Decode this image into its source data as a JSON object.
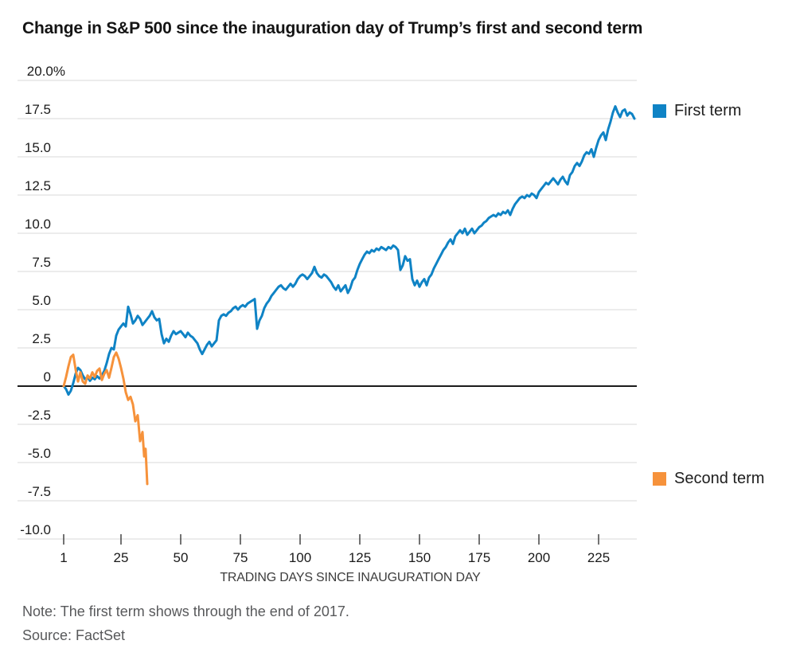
{
  "chart_data": {
    "type": "line",
    "title": "Change in S&P 500 since the inauguration day of Trump’s first and second term",
    "xlabel": "TRADING DAYS SINCE INAUGURATION DAY",
    "ylabel": "",
    "note": "Note: The first term shows through the end of 2017.",
    "source": "Source: FactSet",
    "xlim": [
      1,
      241
    ],
    "ylim": [
      -10,
      20
    ],
    "grid": "horizontal",
    "grid_color": "#d9d9d9",
    "zero_line_color": "#1c1c1c",
    "tick_mark_color": "#444444",
    "legend_position": "right",
    "yticks": [
      {
        "label": "20.0%",
        "value": 20
      },
      {
        "label": "17.5",
        "value": 17.5
      },
      {
        "label": "15.0",
        "value": 15
      },
      {
        "label": "12.5",
        "value": 12.5
      },
      {
        "label": "10.0",
        "value": 10
      },
      {
        "label": "7.5",
        "value": 7.5
      },
      {
        "label": "5.0",
        "value": 5
      },
      {
        "label": "2.5",
        "value": 2.5
      },
      {
        "label": "0",
        "value": 0
      },
      {
        "label": "-2.5",
        "value": -2.5
      },
      {
        "label": "-5.0",
        "value": -5
      },
      {
        "label": "-7.5",
        "value": -7.5
      },
      {
        "label": "-10.0",
        "value": -10
      }
    ],
    "xticks": [
      {
        "label": "1",
        "value": 1
      },
      {
        "label": "25",
        "value": 25
      },
      {
        "label": "50",
        "value": 50
      },
      {
        "label": "75",
        "value": 75
      },
      {
        "label": "100",
        "value": 100
      },
      {
        "label": "125",
        "value": 125
      },
      {
        "label": "150",
        "value": 150
      },
      {
        "label": "175",
        "value": 175
      },
      {
        "label": "200",
        "value": 200
      },
      {
        "label": "225",
        "value": 225
      }
    ],
    "series": [
      {
        "name": "First term",
        "color": "#0f83c5",
        "start_day": 1,
        "step": 1,
        "values": [
          0.0,
          -0.2,
          -0.55,
          -0.3,
          0.2,
          0.8,
          1.2,
          1.05,
          0.7,
          0.45,
          0.6,
          0.35,
          0.55,
          0.45,
          0.65,
          0.5,
          0.7,
          1.0,
          1.5,
          2.1,
          2.5,
          2.4,
          3.3,
          3.7,
          3.9,
          4.1,
          3.9,
          5.2,
          4.7,
          4.1,
          4.3,
          4.6,
          4.4,
          4.0,
          4.2,
          4.4,
          4.6,
          4.9,
          4.5,
          4.3,
          4.4,
          3.4,
          2.8,
          3.1,
          2.9,
          3.3,
          3.6,
          3.4,
          3.5,
          3.6,
          3.4,
          3.2,
          3.5,
          3.3,
          3.2,
          3.0,
          2.8,
          2.4,
          2.1,
          2.4,
          2.7,
          2.9,
          2.6,
          2.8,
          3.0,
          4.3,
          4.6,
          4.7,
          4.6,
          4.8,
          4.9,
          5.1,
          5.2,
          5.0,
          5.2,
          5.3,
          5.2,
          5.4,
          5.5,
          5.6,
          5.7,
          3.75,
          4.3,
          4.6,
          5.1,
          5.4,
          5.6,
          5.9,
          6.1,
          6.3,
          6.5,
          6.6,
          6.4,
          6.3,
          6.5,
          6.7,
          6.5,
          6.7,
          7.0,
          7.2,
          7.3,
          7.2,
          7.0,
          7.2,
          7.4,
          7.8,
          7.4,
          7.2,
          7.1,
          7.3,
          7.2,
          7.0,
          6.8,
          6.5,
          6.3,
          6.6,
          6.2,
          6.4,
          6.6,
          6.1,
          6.4,
          6.9,
          7.1,
          7.6,
          8.0,
          8.3,
          8.6,
          8.8,
          8.7,
          8.9,
          8.8,
          9.0,
          8.9,
          9.1,
          9.0,
          8.9,
          9.1,
          9.0,
          9.2,
          9.1,
          8.9,
          7.6,
          7.9,
          8.5,
          8.2,
          8.3,
          7.0,
          6.6,
          6.9,
          6.5,
          6.8,
          7.0,
          6.6,
          7.1,
          7.3,
          7.7,
          8.0,
          8.3,
          8.6,
          8.9,
          9.1,
          9.4,
          9.6,
          9.3,
          9.8,
          10.0,
          10.2,
          10.0,
          10.3,
          9.9,
          10.1,
          10.3,
          10.0,
          10.2,
          10.4,
          10.5,
          10.7,
          10.8,
          11.0,
          11.1,
          11.2,
          11.1,
          11.3,
          11.2,
          11.4,
          11.3,
          11.5,
          11.2,
          11.6,
          11.9,
          12.1,
          12.3,
          12.4,
          12.3,
          12.5,
          12.4,
          12.6,
          12.5,
          12.3,
          12.7,
          12.9,
          13.1,
          13.3,
          13.2,
          13.4,
          13.6,
          13.4,
          13.2,
          13.5,
          13.7,
          13.4,
          13.2,
          13.8,
          14.0,
          14.4,
          14.6,
          14.4,
          14.7,
          15.1,
          15.3,
          15.2,
          15.5,
          15.0,
          15.6,
          16.1,
          16.4,
          16.6,
          16.1,
          16.8,
          17.3,
          17.9,
          18.3,
          17.9,
          17.6,
          18.0,
          18.1,
          17.7,
          17.9,
          17.8,
          17.5
        ]
      },
      {
        "name": "Second term",
        "color": "#f6923b",
        "points": [
          [
            1,
            0.0
          ],
          [
            2,
            0.6
          ],
          [
            3,
            1.3
          ],
          [
            4,
            1.9
          ],
          [
            5,
            2.05
          ],
          [
            6,
            1.1
          ],
          [
            7,
            0.3
          ],
          [
            8,
            0.9
          ],
          [
            9,
            0.3
          ],
          [
            10,
            0.15
          ],
          [
            11,
            0.7
          ],
          [
            12,
            0.5
          ],
          [
            13,
            0.9
          ],
          [
            14,
            0.6
          ],
          [
            15,
            1.0
          ],
          [
            16,
            1.15
          ],
          [
            17,
            0.4
          ],
          [
            18,
            0.8
          ],
          [
            19,
            1.05
          ],
          [
            20,
            0.55
          ],
          [
            21,
            1.2
          ],
          [
            22,
            1.9
          ],
          [
            23,
            2.2
          ],
          [
            24,
            1.8
          ],
          [
            25,
            1.2
          ],
          [
            26,
            0.5
          ],
          [
            27,
            -0.4
          ],
          [
            28,
            -0.9
          ],
          [
            29,
            -0.7
          ],
          [
            30,
            -1.2
          ],
          [
            31,
            -2.3
          ],
          [
            32,
            -1.9
          ],
          [
            33,
            -3.6
          ],
          [
            34,
            -3.0
          ],
          [
            34.7,
            -4.6
          ],
          [
            35.3,
            -4.1
          ],
          [
            36,
            -6.4
          ]
        ]
      }
    ]
  }
}
